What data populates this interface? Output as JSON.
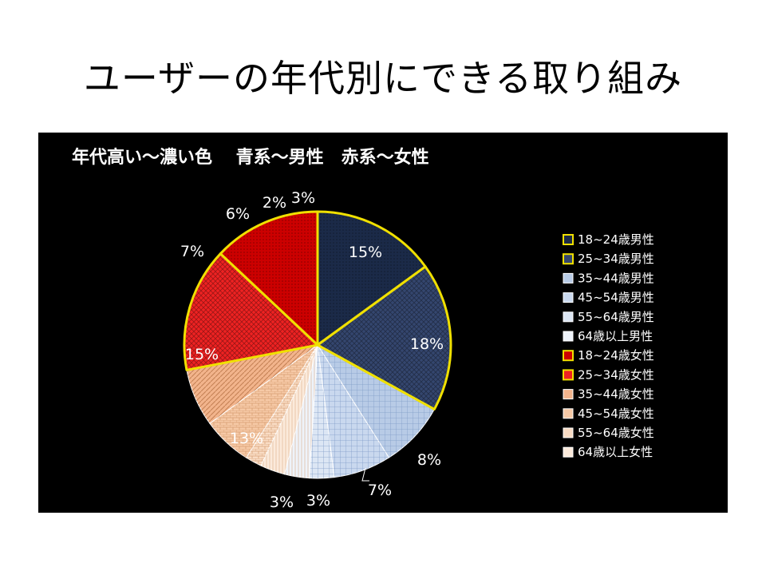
{
  "slide": {
    "title": "ユーザーの年代別にできる取り組み"
  },
  "chart_data": {
    "type": "pie",
    "title": "年代高い～濃い色　 青系～男性　赤系～女性",
    "legend_position": "right",
    "slices": [
      {
        "label": "18~24歳男性",
        "value": 15,
        "display": "15%",
        "color": "#1b2a48"
      },
      {
        "label": "25~34歳男性",
        "value": 18,
        "display": "18%",
        "color": "#34466e"
      },
      {
        "label": "35~44歳男性",
        "value": 8,
        "display": "8%",
        "color": "#b8cbe6"
      },
      {
        "label": "45~54歳男性",
        "value": 7,
        "display": "7%",
        "color": "#c9d8ee"
      },
      {
        "label": "55~64歳男性",
        "value": 3,
        "display": "3%",
        "color": "#dce6f4"
      },
      {
        "label": "64歳以上男性",
        "value": 3,
        "display": "3%",
        "color": "#eef3fa"
      },
      {
        "label": "18~24歳女性",
        "value": 13,
        "display": "13%",
        "color": "#cc0000"
      },
      {
        "label": "25~34歳女性",
        "value": 15,
        "display": "15%",
        "color": "#ee2222"
      },
      {
        "label": "35~44歳女性",
        "value": 7,
        "display": "7%",
        "color": "#f2b48c"
      },
      {
        "label": "45~54歳女性",
        "value": 6,
        "display": "6%",
        "color": "#f6c9a6"
      },
      {
        "label": "55~64歳女性",
        "value": 2,
        "display": "2%",
        "color": "#f9dcc4"
      },
      {
        "label": "64歳以上女性",
        "value": 3,
        "display": "3%",
        "color": "#fbeadb"
      }
    ],
    "legend_order": [
      0,
      1,
      2,
      3,
      4,
      5,
      6,
      7,
      8,
      9,
      10,
      11
    ],
    "draw_order": [
      0,
      1,
      2,
      3,
      4,
      5,
      11,
      10,
      9,
      8,
      7,
      6
    ]
  },
  "style": {
    "highlight_color": "#f0e000",
    "label_color": "#ffffff",
    "legend_text_color": "#ffffff"
  }
}
